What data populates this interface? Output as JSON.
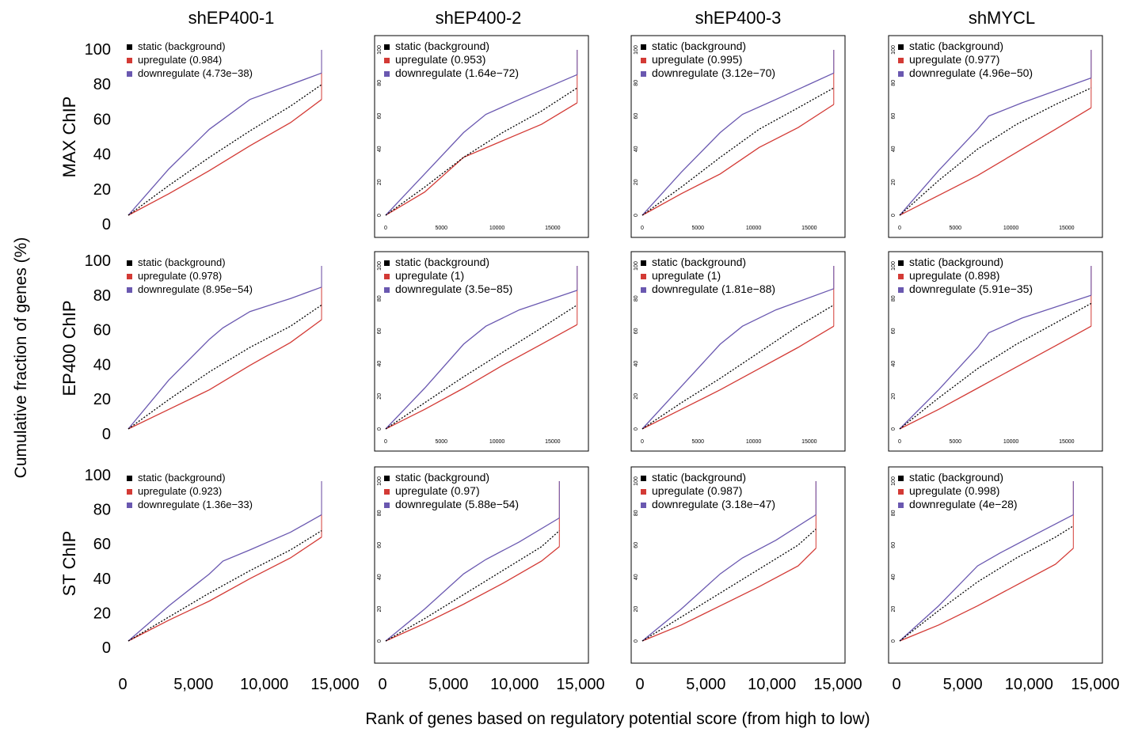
{
  "figure": {
    "column_titles": [
      "shEP400-1",
      "shEP400-2",
      "shEP400-3",
      "shMYCL"
    ],
    "row_labels": [
      "MAX ChIP",
      "EP400 ChIP",
      "ST ChIP"
    ],
    "ylabel": "Cumulative fraction of genes (%)",
    "xlabel": "Rank of genes based on regulatory potential score (from high to low)",
    "big_x_ticks": [
      "0",
      "5,000",
      "10,000",
      "15,000"
    ],
    "big_y_ticks": [
      "0",
      "20",
      "40",
      "60",
      "80",
      "100"
    ],
    "small_x_ticks": [
      "0",
      "5000",
      "10000",
      "15000"
    ],
    "small_y_ticks": [
      "0",
      "20",
      "40",
      "60",
      "80",
      "100"
    ],
    "colors": {
      "static": "#000000",
      "upregulate": "#d33a35",
      "downregulate": "#6a58b0"
    }
  },
  "chart_data": [
    {
      "type": "line",
      "row": "MAX ChIP",
      "column": "shEP400-1",
      "xlim": [
        0,
        15000
      ],
      "ylim": [
        0,
        100
      ],
      "series": [
        {
          "name": "static (background)",
          "x": [
            0,
            3000,
            6000,
            9000,
            12000,
            14300
          ],
          "y": [
            0,
            18,
            35,
            51,
            66,
            79
          ]
        },
        {
          "name": "upregulate (0.984)",
          "x": [
            0,
            3000,
            6000,
            9000,
            12000,
            14300
          ],
          "y": [
            0,
            13,
            27,
            42,
            56,
            70
          ]
        },
        {
          "name": "downregulate (4.73e−38)",
          "x": [
            0,
            3000,
            6000,
            7000,
            9000,
            12000,
            14300
          ],
          "y": [
            0,
            28,
            52,
            58,
            70,
            79,
            86
          ]
        }
      ]
    },
    {
      "type": "line",
      "row": "MAX ChIP",
      "column": "shEP400-2",
      "xlim": [
        0,
        17500
      ],
      "ylim": [
        0,
        100
      ],
      "series": [
        {
          "name": "static (background)",
          "x": [
            0,
            3500,
            7000,
            10500,
            14000,
            17200
          ],
          "y": [
            0,
            17,
            35,
            50,
            63,
            77
          ]
        },
        {
          "name": "upregulate (0.953)",
          "x": [
            0,
            3500,
            7000,
            10500,
            14000,
            17200
          ],
          "y": [
            0,
            14,
            35,
            45,
            55,
            68
          ]
        },
        {
          "name": "downregulate (1.64e−72)",
          "x": [
            0,
            3500,
            7000,
            9000,
            12000,
            17200
          ],
          "y": [
            0,
            25,
            50,
            61,
            70,
            85
          ]
        }
      ]
    },
    {
      "type": "line",
      "row": "MAX ChIP",
      "column": "shEP400-3",
      "xlim": [
        0,
        17500
      ],
      "ylim": [
        0,
        100
      ],
      "series": [
        {
          "name": "static (background)",
          "x": [
            0,
            3500,
            7000,
            10500,
            14000,
            17200
          ],
          "y": [
            0,
            17,
            35,
            52,
            65,
            77
          ]
        },
        {
          "name": "upregulate (0.995)",
          "x": [
            0,
            3500,
            7000,
            10500,
            14000,
            17200
          ],
          "y": [
            0,
            13,
            25,
            41,
            53,
            67
          ]
        },
        {
          "name": "downregulate (3.12e−70)",
          "x": [
            0,
            3500,
            7000,
            9000,
            12000,
            17200
          ],
          "y": [
            0,
            26,
            50,
            61,
            70,
            86
          ]
        }
      ]
    },
    {
      "type": "line",
      "row": "MAX ChIP",
      "column": "shMYCL",
      "xlim": [
        0,
        17500
      ],
      "ylim": [
        0,
        100
      ],
      "series": [
        {
          "name": "static (background)",
          "x": [
            0,
            3500,
            7000,
            10500,
            14000,
            17200
          ],
          "y": [
            0,
            21,
            40,
            55,
            67,
            77
          ]
        },
        {
          "name": "upregulate (0.977)",
          "x": [
            0,
            3500,
            7000,
            10500,
            14000,
            17200
          ],
          "y": [
            0,
            12,
            24,
            38,
            52,
            65
          ]
        },
        {
          "name": "downregulate (4.96e−50)",
          "x": [
            0,
            3500,
            7000,
            8000,
            11000,
            17200
          ],
          "y": [
            0,
            27,
            52,
            60,
            68,
            83
          ]
        }
      ]
    },
    {
      "type": "line",
      "row": "EP400 ChIP",
      "column": "shEP400-1",
      "xlim": [
        0,
        15000
      ],
      "ylim": [
        0,
        100
      ],
      "series": [
        {
          "name": "static (background)",
          "x": [
            0,
            3000,
            6000,
            9000,
            12000,
            14300
          ],
          "y": [
            0,
            18,
            35,
            50,
            63,
            76
          ]
        },
        {
          "name": "upregulate (0.978)",
          "x": [
            0,
            3000,
            6000,
            9000,
            12000,
            14300
          ],
          "y": [
            0,
            12,
            24,
            39,
            53,
            67
          ]
        },
        {
          "name": "downregulate (8.95e−54)",
          "x": [
            0,
            3000,
            6000,
            7000,
            9000,
            12000,
            14300
          ],
          "y": [
            0,
            30,
            55,
            62,
            72,
            80,
            87
          ]
        }
      ]
    },
    {
      "type": "line",
      "row": "EP400 ChIP",
      "column": "shEP400-2",
      "xlim": [
        0,
        17500
      ],
      "ylim": [
        0,
        100
      ],
      "series": [
        {
          "name": "static (background)",
          "x": [
            0,
            3500,
            7000,
            10500,
            14000,
            17200
          ],
          "y": [
            0,
            16,
            32,
            47,
            62,
            76
          ]
        },
        {
          "name": "upregulate (1)",
          "x": [
            0,
            3500,
            7000,
            10500,
            14000,
            17200
          ],
          "y": [
            0,
            12,
            25,
            39,
            52,
            64
          ]
        },
        {
          "name": "downregulate (3.5e−85)",
          "x": [
            0,
            3500,
            7000,
            9000,
            12000,
            17200
          ],
          "y": [
            0,
            25,
            52,
            63,
            73,
            85
          ]
        }
      ]
    },
    {
      "type": "line",
      "row": "EP400 ChIP",
      "column": "shEP400-3",
      "xlim": [
        0,
        17500
      ],
      "ylim": [
        0,
        100
      ],
      "series": [
        {
          "name": "static (background)",
          "x": [
            0,
            3500,
            7000,
            10500,
            14000,
            17200
          ],
          "y": [
            0,
            16,
            31,
            47,
            63,
            76
          ]
        },
        {
          "name": "upregulate (1)",
          "x": [
            0,
            3500,
            7000,
            10500,
            14000,
            17200
          ],
          "y": [
            0,
            12,
            24,
            37,
            50,
            63
          ]
        },
        {
          "name": "downregulate (1.81e−88)",
          "x": [
            0,
            3500,
            7000,
            9000,
            12000,
            17200
          ],
          "y": [
            0,
            26,
            52,
            63,
            73,
            86
          ]
        }
      ]
    },
    {
      "type": "line",
      "row": "EP400 ChIP",
      "column": "shMYCL",
      "xlim": [
        0,
        17500
      ],
      "ylim": [
        0,
        100
      ],
      "series": [
        {
          "name": "static (background)",
          "x": [
            0,
            3500,
            7000,
            10500,
            14000,
            17200
          ],
          "y": [
            0,
            19,
            37,
            52,
            65,
            77
          ]
        },
        {
          "name": "upregulate (0.898)",
          "x": [
            0,
            3500,
            7000,
            10500,
            14000,
            17200
          ],
          "y": [
            0,
            12,
            25,
            38,
            51,
            63
          ]
        },
        {
          "name": "downregulate (5.91e−35)",
          "x": [
            0,
            3500,
            7000,
            8000,
            11000,
            17200
          ],
          "y": [
            0,
            24,
            50,
            59,
            68,
            82
          ]
        }
      ]
    },
    {
      "type": "line",
      "row": "ST ChIP",
      "column": "shEP400-1",
      "xlim": [
        0,
        15000
      ],
      "ylim": [
        0,
        100
      ],
      "series": [
        {
          "name": "static (background)",
          "x": [
            0,
            3000,
            6000,
            9000,
            12000,
            14300
          ],
          "y": [
            0,
            15,
            30,
            44,
            57,
            69
          ]
        },
        {
          "name": "upregulate (0.923)",
          "x": [
            0,
            3000,
            6000,
            9000,
            12000,
            14300
          ],
          "y": [
            0,
            13,
            25,
            39,
            52,
            65
          ]
        },
        {
          "name": "downregulate (1.36e−33)",
          "x": [
            0,
            3000,
            6000,
            7000,
            9000,
            12000,
            14300
          ],
          "y": [
            0,
            22,
            42,
            50,
            57,
            68,
            79
          ]
        }
      ]
    },
    {
      "type": "line",
      "row": "ST ChIP",
      "column": "shEP400-2",
      "xlim": [
        0,
        17500
      ],
      "ylim": [
        0,
        100
      ],
      "series": [
        {
          "name": "static (background)",
          "x": [
            0,
            3500,
            7000,
            10500,
            14000,
            15600
          ],
          "y": [
            0,
            14,
            29,
            44,
            59,
            69
          ]
        },
        {
          "name": "upregulate (0.97)",
          "x": [
            0,
            3500,
            7000,
            10500,
            14000,
            15600
          ],
          "y": [
            0,
            11,
            23,
            36,
            50,
            59
          ]
        },
        {
          "name": "downregulate (5.88e−54)",
          "x": [
            0,
            3500,
            7000,
            9000,
            12000,
            15600
          ],
          "y": [
            0,
            20,
            42,
            51,
            62,
            77
          ]
        }
      ]
    },
    {
      "type": "line",
      "row": "ST ChIP",
      "column": "shEP400-3",
      "xlim": [
        0,
        17500
      ],
      "ylim": [
        0,
        100
      ],
      "series": [
        {
          "name": "static (background)",
          "x": [
            0,
            3500,
            7000,
            10500,
            14000,
            15600
          ],
          "y": [
            0,
            15,
            30,
            45,
            60,
            70
          ]
        },
        {
          "name": "upregulate (0.987)",
          "x": [
            0,
            3500,
            7000,
            10500,
            14000,
            15600
          ],
          "y": [
            0,
            10,
            22,
            34,
            47,
            58
          ]
        },
        {
          "name": "downregulate (3.18e−47)",
          "x": [
            0,
            3500,
            7000,
            9000,
            12000,
            15600
          ],
          "y": [
            0,
            20,
            42,
            52,
            63,
            79
          ]
        }
      ]
    },
    {
      "type": "line",
      "row": "ST ChIP",
      "column": "shMYCL",
      "xlim": [
        0,
        17500
      ],
      "ylim": [
        0,
        100
      ],
      "series": [
        {
          "name": "static (background)",
          "x": [
            0,
            3500,
            7000,
            10500,
            14000,
            15600
          ],
          "y": [
            0,
            19,
            37,
            52,
            65,
            72
          ]
        },
        {
          "name": "upregulate (0.998)",
          "x": [
            0,
            3500,
            7000,
            10500,
            14000,
            15600
          ],
          "y": [
            0,
            10,
            22,
            35,
            48,
            58
          ]
        },
        {
          "name": "downregulate (4e−28)",
          "x": [
            0,
            3500,
            7000,
            9000,
            12000,
            15600
          ],
          "y": [
            0,
            22,
            47,
            55,
            66,
            79
          ]
        }
      ]
    }
  ]
}
